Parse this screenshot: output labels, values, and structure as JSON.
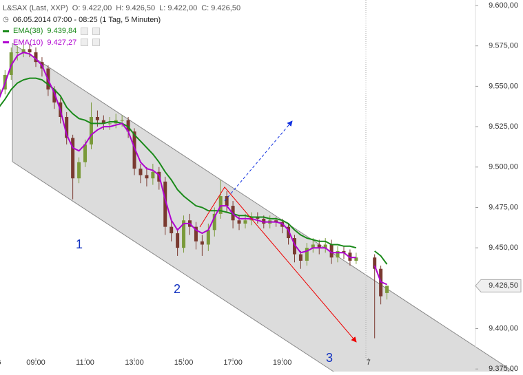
{
  "chart_data": {
    "type": "candlestick",
    "instrument": "L&SAX (Last, XXP)",
    "quote": [
      "O: 9.422,00",
      "H: 9.426,50",
      "L: 9.422,00",
      "C: 9.426,50"
    ],
    "period": "06.05.2014 07:00 - 08:25 (1 Tag, 5 Minuten)",
    "categories": [
      "6",
      null,
      null,
      null,
      null,
      null,
      "09:00",
      null,
      null,
      null,
      null,
      null,
      null,
      null,
      "11:00",
      null,
      null,
      null,
      null,
      null,
      null,
      null,
      "13:00",
      null,
      null,
      null,
      null,
      null,
      null,
      null,
      "15:00",
      null,
      null,
      null,
      null,
      null,
      null,
      null,
      "17:00",
      null,
      null,
      null,
      null,
      null,
      null,
      null,
      "19:00",
      null,
      null,
      null,
      null,
      null,
      null,
      null,
      null,
      null,
      null,
      null,
      null,
      null,
      "7",
      null,
      null,
      null
    ],
    "candles": {
      "up_color": "#7a9a3a",
      "down_color": "#7a3a30",
      "open": [
        9545,
        9548,
        9557,
        9571,
        9571,
        9573,
        9571,
        9565,
        9561,
        9548,
        9540,
        9531,
        9518,
        9493,
        9503,
        9514,
        9531,
        9529,
        9527,
        9527,
        9529,
        9529,
        9522,
        9499,
        9495,
        9493,
        9497,
        9491,
        9463,
        9459,
        9450,
        9467,
        9463,
        9454,
        9452,
        9461,
        9471,
        9482,
        9476,
        9467,
        9465,
        9467,
        9469,
        9468,
        9465,
        9467,
        9466,
        9463,
        9456,
        9446,
        9442,
        9450,
        9452,
        9450,
        9452,
        9444,
        9448,
        9447,
        9442,
        null,
        null,
        9444,
        9437,
        9422
      ],
      "high": [
        9551,
        9560,
        9574,
        9575,
        9576,
        9576,
        9574,
        9568,
        9563,
        9550,
        9543,
        9534,
        9520,
        9506,
        9517,
        9540,
        9535,
        9532,
        9531,
        9533,
        9532,
        9531,
        9524,
        9502,
        9500,
        9502,
        9500,
        9494,
        9467,
        9462,
        9470,
        9471,
        9466,
        9458,
        9465,
        9475,
        9492,
        9485,
        9479,
        9470,
        9471,
        9472,
        9472,
        9470,
        9470,
        9469,
        9468,
        9465,
        9458,
        9448,
        9453,
        9456,
        9455,
        9456,
        9455,
        9451,
        9451,
        9449,
        9447,
        null,
        null,
        9446,
        9439,
        9426.5
      ],
      "low": [
        9542,
        9545,
        9554,
        9566,
        9568,
        9568,
        9562,
        9556,
        9544,
        9536,
        9527,
        9514,
        9480,
        9490,
        9500,
        9511,
        9525,
        9523,
        9523,
        9524,
        9525,
        9518,
        9495,
        9490,
        9488,
        9489,
        9486,
        9458,
        9454,
        9445,
        9447,
        9458,
        9449,
        9445,
        9448,
        9457,
        9468,
        9472,
        9462,
        9461,
        9462,
        9464,
        9465,
        9462,
        9462,
        9463,
        9459,
        9452,
        9441,
        9437,
        9439,
        9447,
        9446,
        9447,
        9440,
        9441,
        9443,
        9439,
        9440,
        null,
        null,
        9394,
        9415,
        9418
      ],
      "close": [
        9548,
        9557,
        9571,
        9571,
        9573,
        9571,
        9565,
        9561,
        9548,
        9540,
        9531,
        9518,
        9493,
        9503,
        9514,
        9531,
        9529,
        9527,
        9527,
        9529,
        9529,
        9522,
        9499,
        9495,
        9493,
        9497,
        9491,
        9463,
        9459,
        9450,
        9467,
        9463,
        9454,
        9452,
        9461,
        9471,
        9482,
        9476,
        9467,
        9465,
        9467,
        9469,
        9468,
        9465,
        9467,
        9466,
        9463,
        9456,
        9446,
        9442,
        9450,
        9452,
        9450,
        9452,
        9444,
        9448,
        9447,
        9442,
        9444,
        null,
        null,
        9437,
        9420,
        9426.5
      ]
    },
    "series": [
      {
        "name": "EMA(38)",
        "color": "#1a8a1a",
        "legend_value": "9.439,84",
        "values": [
          9537,
          9542,
          9548,
          9552,
          9554,
          9555,
          9555,
          9554,
          9551,
          9548,
          9544,
          9537,
          9533,
          9530,
          9529,
          9527,
          9527,
          9527,
          9528,
          9528,
          9527,
          9525,
          9520,
          9516,
          9512,
          9508,
          9503,
          9497,
          9492,
          9486,
          9482,
          9479,
          9476,
          9475,
          9473,
          9473,
          9473,
          9472,
          9471,
          9470,
          9470,
          9469,
          9469,
          9469,
          9468,
          9468,
          9467,
          9465,
          9461,
          9458,
          9456,
          9455,
          9454,
          9454,
          9452,
          9452,
          9451,
          9451,
          9450,
          null,
          null,
          9448,
          9445,
          9439.84
        ]
      },
      {
        "name": "EMA(10)",
        "color": "#b000d0",
        "legend_value": "9.427,27",
        "values": [
          9542,
          9552,
          9563,
          9569,
          9571,
          9570,
          9567,
          9563,
          9554,
          9546,
          9535,
          9520,
          9512,
          9510,
          9514,
          9520,
          9523,
          9525,
          9525,
          9526,
          9527,
          9522,
          9512,
          9503,
          9499,
          9498,
          9495,
          9480,
          9467,
          9461,
          9465,
          9465,
          9461,
          9459,
          9461,
          9469,
          9476,
          9476,
          9471,
          9468,
          9468,
          9468,
          9467,
          9466,
          9466,
          9466,
          9465,
          9461,
          9452,
          9447,
          9448,
          9450,
          9450,
          9450,
          9447,
          9447,
          9447,
          9444,
          9444,
          null,
          null,
          9439,
          9429,
          9427.27
        ]
      }
    ],
    "ylim": [
      9373.4,
      9603.4
    ],
    "yticks": [
      {
        "value": 9375,
        "label": "9.375,00"
      },
      {
        "value": 9400,
        "label": "9.400,00"
      },
      {
        "value": 9450,
        "label": "9.450,00"
      },
      {
        "value": 9475,
        "label": "9.475,00"
      },
      {
        "value": 9500,
        "label": "9.500,00"
      },
      {
        "value": 9525,
        "label": "9.525,00"
      },
      {
        "value": 9550,
        "label": "9.550,00"
      },
      {
        "value": 9575,
        "label": "9.575,00"
      },
      {
        "value": 9600,
        "label": "9.600,00"
      }
    ],
    "last_price": {
      "value": 9426.5,
      "label": "9.426,50"
    },
    "annotations": [
      "1",
      "2",
      "3"
    ]
  }
}
